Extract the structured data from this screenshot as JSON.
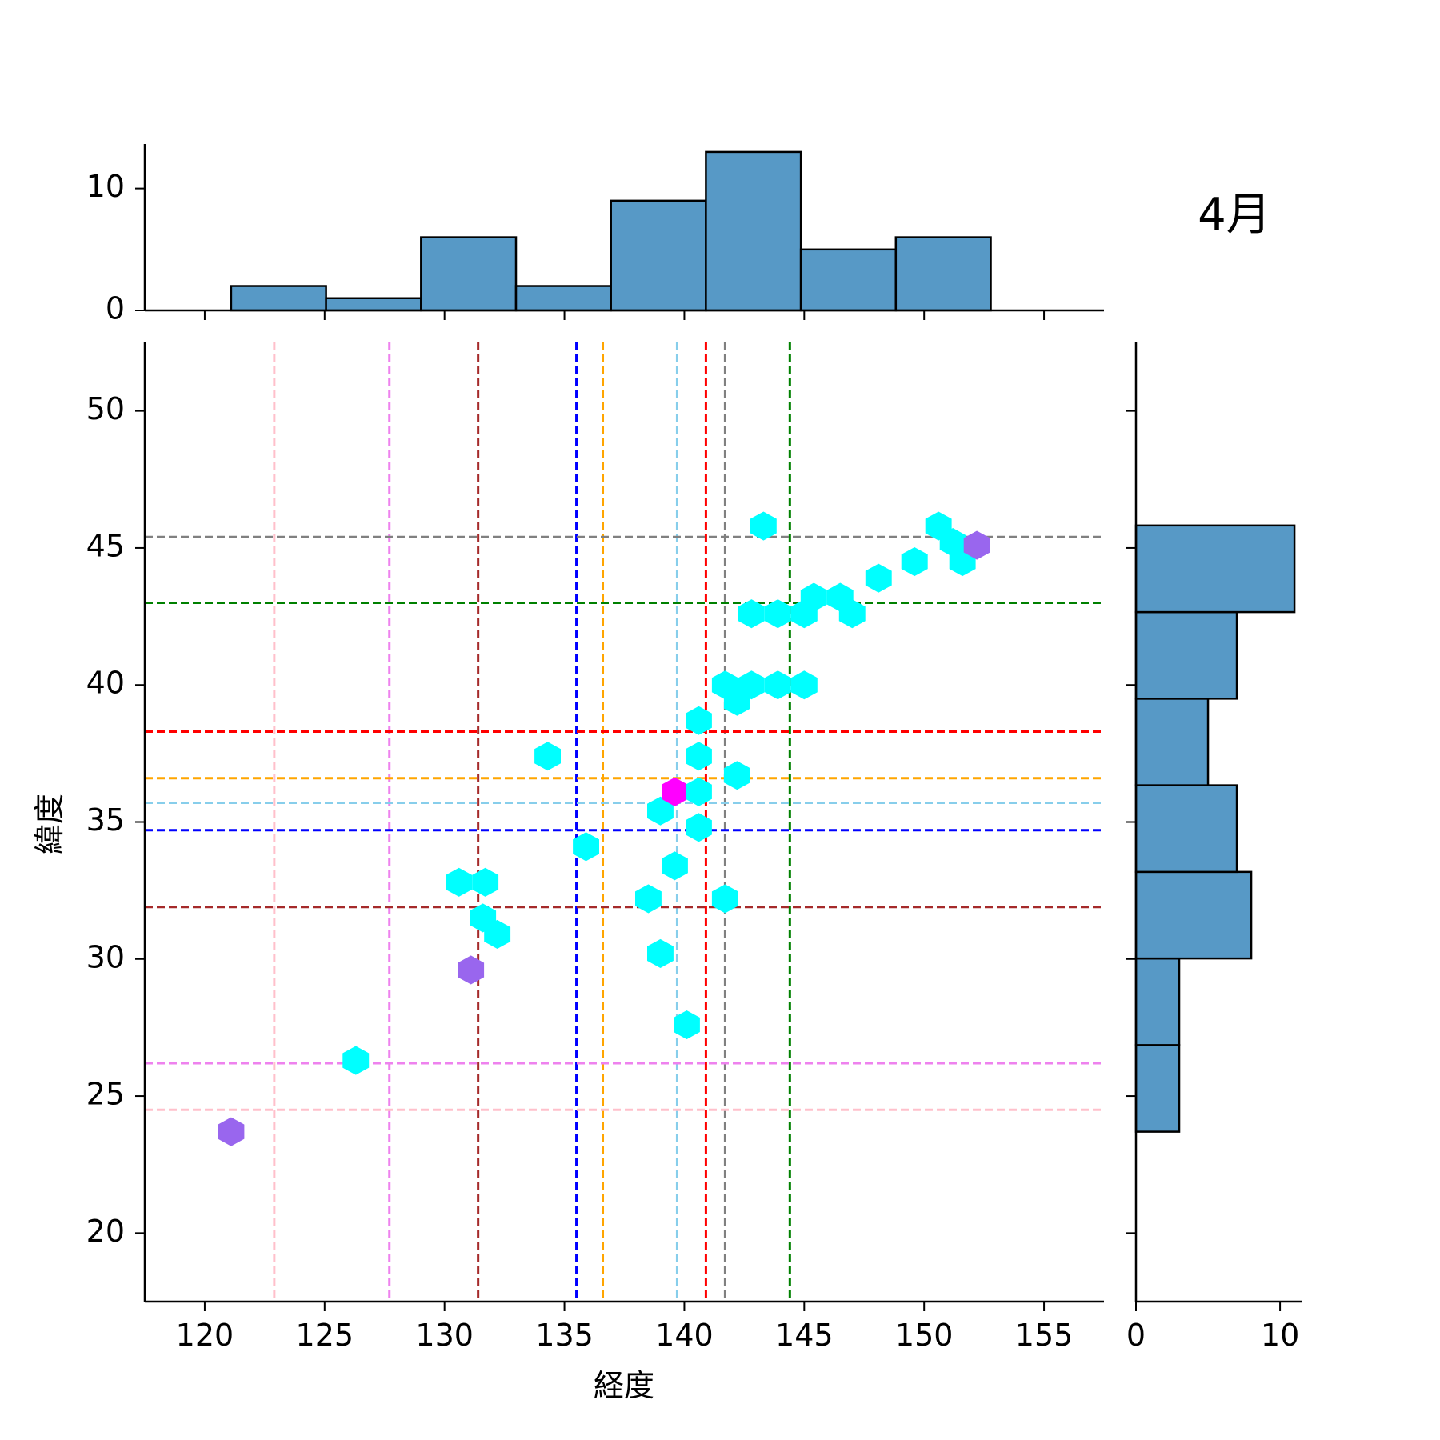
{
  "chart_data": {
    "type": "jointplot-hexbin",
    "title": "4月",
    "xlabel": "経度",
    "ylabel": "緯度",
    "xlim": [
      117.5,
      157.5
    ],
    "ylim": [
      17.5,
      52.5
    ],
    "xticks": [
      120,
      125,
      130,
      135,
      140,
      145,
      150,
      155
    ],
    "yticks": [
      20,
      25,
      30,
      35,
      40,
      45,
      50
    ],
    "hexbins": [
      {
        "x": 121.1,
        "y": 23.7,
        "count": 3
      },
      {
        "x": 126.3,
        "y": 26.3,
        "count": 1
      },
      {
        "x": 130.6,
        "y": 32.8,
        "count": 1
      },
      {
        "x": 131.7,
        "y": 32.8,
        "count": 1
      },
      {
        "x": 131.6,
        "y": 31.5,
        "count": 1
      },
      {
        "x": 132.2,
        "y": 30.9,
        "count": 1
      },
      {
        "x": 131.1,
        "y": 29.6,
        "count": 3
      },
      {
        "x": 134.3,
        "y": 37.4,
        "count": 1
      },
      {
        "x": 135.9,
        "y": 34.1,
        "count": 1
      },
      {
        "x": 138.5,
        "y": 32.2,
        "count": 1
      },
      {
        "x": 139.0,
        "y": 30.2,
        "count": 1
      },
      {
        "x": 139.0,
        "y": 35.4,
        "count": 1
      },
      {
        "x": 139.6,
        "y": 33.4,
        "count": 1
      },
      {
        "x": 139.6,
        "y": 36.1,
        "count": 6
      },
      {
        "x": 140.1,
        "y": 27.6,
        "count": 1
      },
      {
        "x": 140.6,
        "y": 38.7,
        "count": 1
      },
      {
        "x": 140.6,
        "y": 37.4,
        "count": 1
      },
      {
        "x": 140.6,
        "y": 36.1,
        "count": 1
      },
      {
        "x": 140.6,
        "y": 34.8,
        "count": 1
      },
      {
        "x": 141.7,
        "y": 32.2,
        "count": 1
      },
      {
        "x": 142.2,
        "y": 36.7,
        "count": 1
      },
      {
        "x": 141.7,
        "y": 40.0,
        "count": 1
      },
      {
        "x": 142.2,
        "y": 39.4,
        "count": 1
      },
      {
        "x": 142.8,
        "y": 40.0,
        "count": 1
      },
      {
        "x": 143.9,
        "y": 40.0,
        "count": 1
      },
      {
        "x": 145.0,
        "y": 40.0,
        "count": 1
      },
      {
        "x": 142.8,
        "y": 42.6,
        "count": 1
      },
      {
        "x": 143.9,
        "y": 42.6,
        "count": 1
      },
      {
        "x": 145.0,
        "y": 42.6,
        "count": 1
      },
      {
        "x": 145.4,
        "y": 43.2,
        "count": 1
      },
      {
        "x": 146.5,
        "y": 43.2,
        "count": 1
      },
      {
        "x": 147.0,
        "y": 42.6,
        "count": 1
      },
      {
        "x": 143.3,
        "y": 45.8,
        "count": 1
      },
      {
        "x": 148.1,
        "y": 43.9,
        "count": 1
      },
      {
        "x": 149.6,
        "y": 44.5,
        "count": 1
      },
      {
        "x": 150.6,
        "y": 45.8,
        "count": 1
      },
      {
        "x": 151.2,
        "y": 45.2,
        "count": 1
      },
      {
        "x": 151.6,
        "y": 44.5,
        "count": 1
      },
      {
        "x": 152.2,
        "y": 45.1,
        "count": 3
      }
    ],
    "hex_colors": {
      "1": "#00ffff",
      "3": "#9966ee",
      "6": "#ff00ff"
    },
    "vlines": [
      {
        "x": 122.9,
        "color": "#ffc0cb"
      },
      {
        "x": 127.7,
        "color": "#ee82ee"
      },
      {
        "x": 131.4,
        "color": "#a52a2a"
      },
      {
        "x": 135.5,
        "color": "#0000ff"
      },
      {
        "x": 136.6,
        "color": "#ffa500"
      },
      {
        "x": 139.7,
        "color": "#87ceeb"
      },
      {
        "x": 140.9,
        "color": "#ff0000"
      },
      {
        "x": 141.7,
        "color": "#808080"
      },
      {
        "x": 144.4,
        "color": "#008000"
      }
    ],
    "hlines": [
      {
        "y": 45.4,
        "color": "#808080"
      },
      {
        "y": 43.0,
        "color": "#008000"
      },
      {
        "y": 38.3,
        "color": "#ff0000"
      },
      {
        "y": 36.6,
        "color": "#ffa500"
      },
      {
        "y": 35.7,
        "color": "#87ceeb"
      },
      {
        "y": 34.7,
        "color": "#0000ff"
      },
      {
        "y": 31.9,
        "color": "#a52a2a"
      },
      {
        "y": 26.2,
        "color": "#ee82ee"
      },
      {
        "y": 24.5,
        "color": "#ffc0cb"
      }
    ],
    "marginal_x": {
      "bin_edges": [
        121.1,
        125.06,
        129.02,
        132.98,
        136.94,
        140.9,
        144.86,
        148.82,
        152.78
      ],
      "counts": [
        2,
        1,
        6,
        2,
        9,
        13,
        5,
        6
      ],
      "yticks": [
        0,
        10
      ],
      "ylim": [
        0,
        13.65
      ]
    },
    "marginal_y": {
      "bin_edges": [
        23.7,
        26.86,
        30.02,
        33.18,
        36.34,
        39.5,
        42.66,
        45.82
      ],
      "counts": [
        3,
        3,
        8,
        7,
        5,
        7,
        11
      ],
      "xticks": [
        0,
        10
      ],
      "xlim": [
        0,
        11.55
      ]
    },
    "bar_color": "#5799c6"
  }
}
